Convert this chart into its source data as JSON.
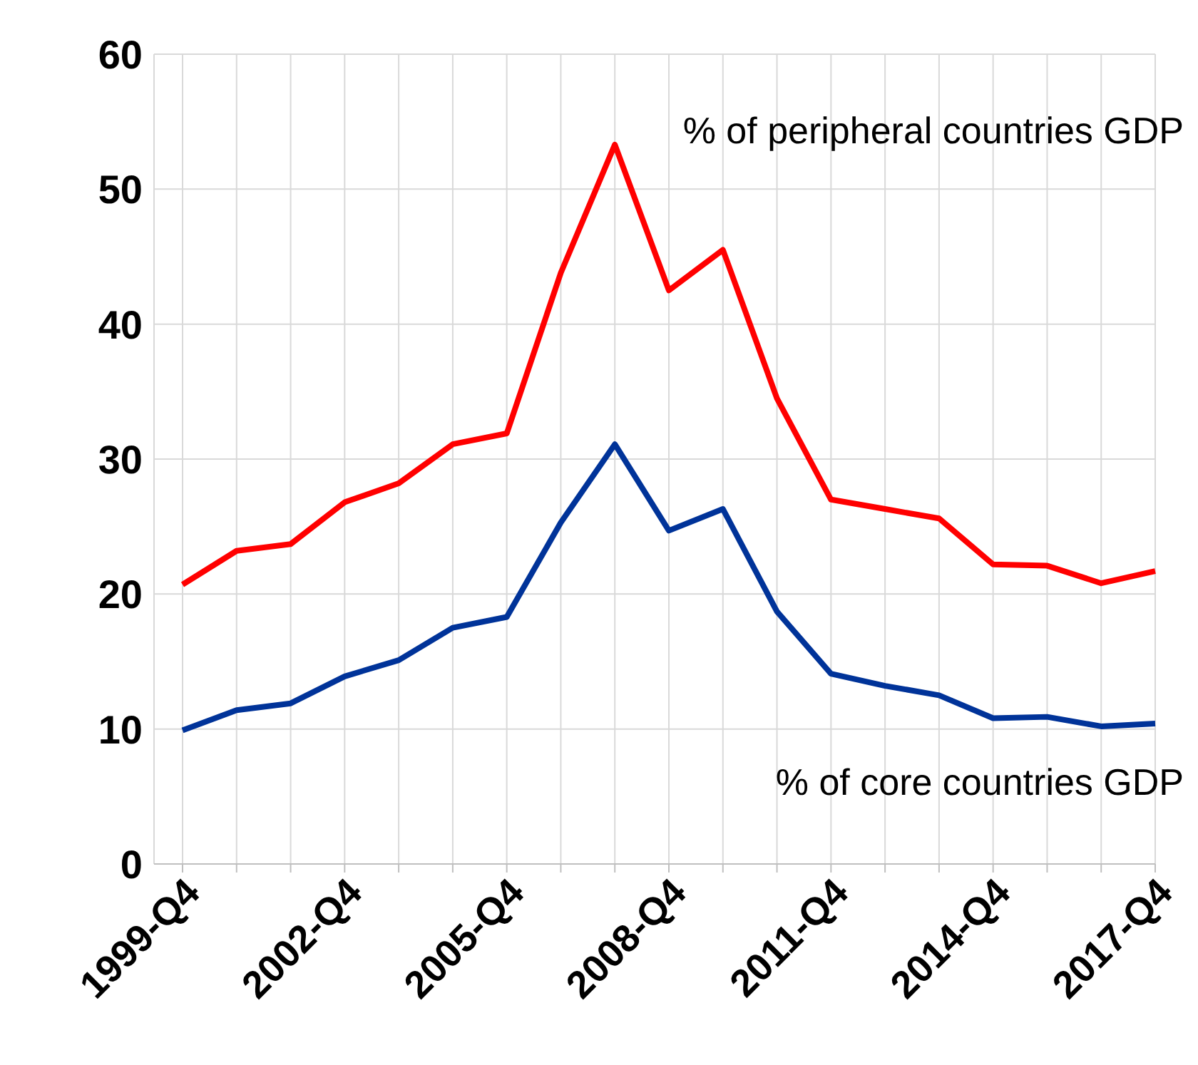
{
  "chart_data": {
    "type": "line",
    "categories": [
      "1999-Q4",
      null,
      null,
      "2002-Q4",
      null,
      null,
      "2005-Q4",
      null,
      null,
      "2008-Q4",
      null,
      null,
      "2011-Q4",
      null,
      null,
      "2014-Q4",
      null,
      null,
      "2017-Q4"
    ],
    "series": [
      {
        "name": "% of peripheral countries GDP",
        "color": "#ff0000",
        "values": [
          20.7,
          23.2,
          23.7,
          26.8,
          28.2,
          31.1,
          31.9,
          43.8,
          53.3,
          42.5,
          45.5,
          34.5,
          27.0,
          26.3,
          25.6,
          22.2,
          22.1,
          20.8,
          21.7
        ]
      },
      {
        "name": "% of core countries GDP",
        "color": "#003399",
        "values": [
          9.9,
          11.4,
          11.9,
          13.9,
          15.1,
          17.5,
          18.3,
          25.3,
          31.1,
          24.7,
          26.3,
          18.7,
          14.1,
          13.2,
          12.5,
          10.8,
          10.9,
          10.2,
          10.4
        ]
      }
    ],
    "ylim": [
      0,
      60
    ],
    "yticks": [
      0,
      10,
      20,
      30,
      40,
      50,
      60
    ],
    "grid": true,
    "legend": false,
    "marker": "none",
    "line_style": "solid"
  }
}
